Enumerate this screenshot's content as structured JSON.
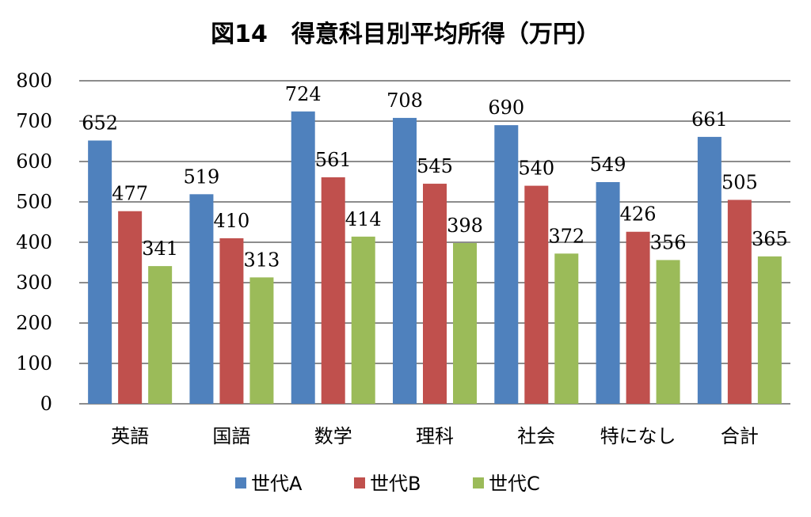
{
  "chart_data": {
    "type": "bar",
    "title": "図14　得意科目別平均所得（万円）",
    "categories": [
      "英語",
      "国語",
      "数学",
      "理科",
      "社会",
      "特になし",
      "合計"
    ],
    "series": [
      {
        "name": "世代A",
        "color": "#4F81BD",
        "values": [
          652,
          519,
          724,
          708,
          690,
          549,
          661
        ]
      },
      {
        "name": "世代B",
        "color": "#C0504D",
        "values": [
          477,
          410,
          561,
          545,
          540,
          426,
          505
        ]
      },
      {
        "name": "世代C",
        "color": "#9BBB59",
        "values": [
          341,
          313,
          414,
          398,
          372,
          356,
          365
        ]
      }
    ],
    "ylim": [
      0,
      800
    ],
    "yticks": [
      0,
      100,
      200,
      300,
      400,
      500,
      600,
      700,
      800
    ],
    "grid": true,
    "legend_position": "bottom"
  }
}
